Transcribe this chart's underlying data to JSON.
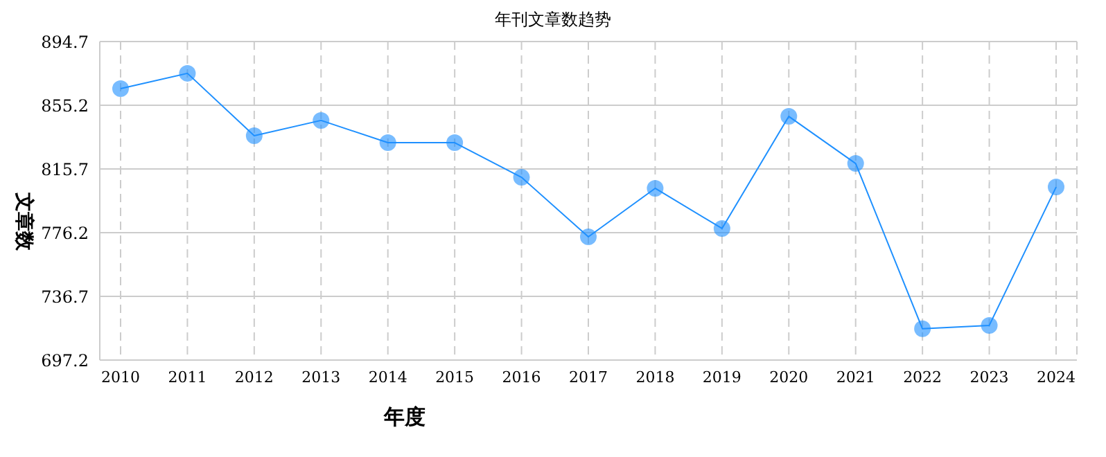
{
  "chart_data": {
    "type": "line",
    "title": "年刊文章数趋势",
    "xlabel": "年度",
    "ylabel": "文章数",
    "categories": [
      "2010",
      "2011",
      "2012",
      "2013",
      "2014",
      "2015",
      "2016",
      "2017",
      "2018",
      "2019",
      "2020",
      "2021",
      "2022",
      "2023",
      "2024"
    ],
    "series": [
      {
        "color": "#1e90ff",
        "values": [
          865.5,
          875,
          836.3,
          845.8,
          832,
          832,
          810.5,
          773.6,
          803.7,
          778.8,
          848.3,
          819.1,
          716.6,
          718.7,
          804.5
        ]
      }
    ],
    "ylim": [
      697.2,
      894.7
    ],
    "yticks": [
      697.2,
      736.7,
      776.2,
      815.7,
      855.2,
      894.7
    ],
    "grid": true,
    "marker": "circle",
    "line_style": "solid",
    "legend": false
  }
}
